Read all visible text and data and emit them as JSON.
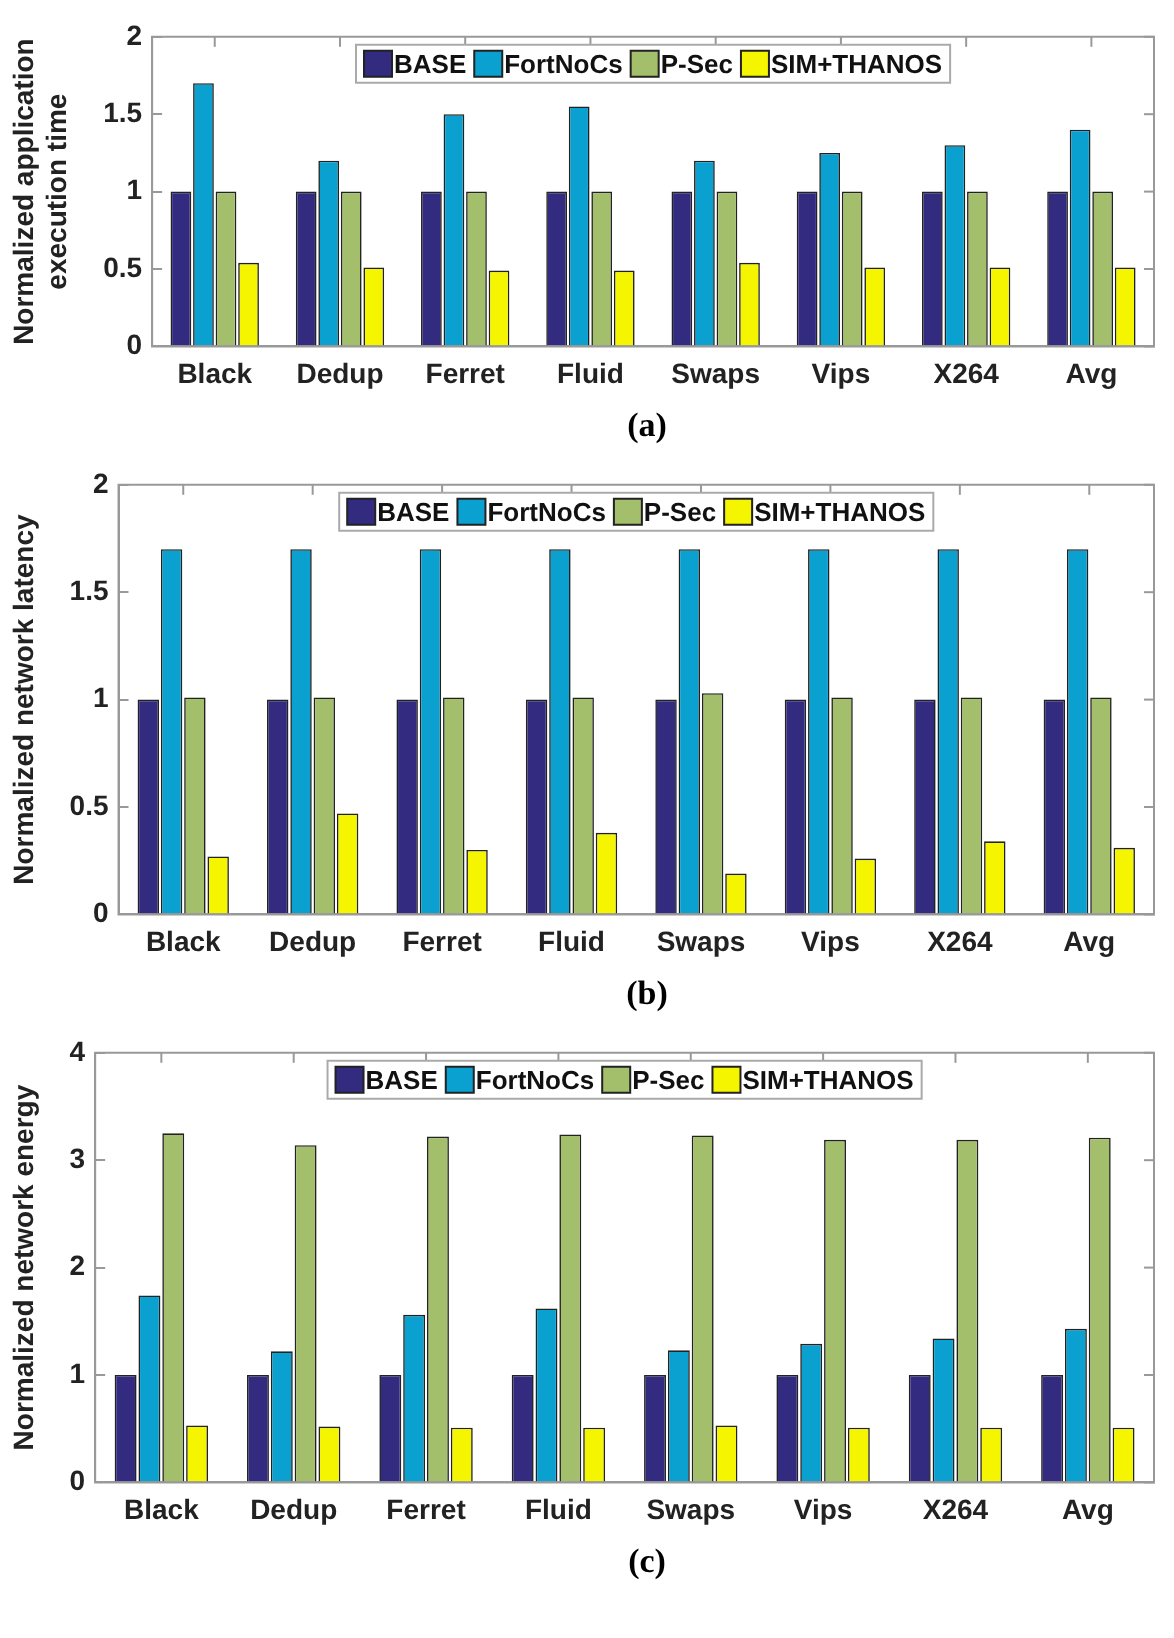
{
  "chart_data": [
    {
      "type": "bar",
      "ylabel": "Normalized application execution time",
      "categories": [
        "Black",
        "Dedup",
        "Ferret",
        "Fluid",
        "Swaps",
        "Vips",
        "X264",
        "Avg"
      ],
      "series": [
        {
          "name": "BASE",
          "color": "#322b80",
          "values": [
            1,
            1,
            1,
            1,
            1,
            1,
            1,
            1
          ]
        },
        {
          "name": "FortNoCs",
          "color": "#0aa0d0",
          "values": [
            1.7,
            1.2,
            1.5,
            1.55,
            1.2,
            1.25,
            1.3,
            1.4
          ]
        },
        {
          "name": "P-Sec",
          "color": "#a4bf6c",
          "values": [
            1,
            1,
            1,
            1,
            1,
            1,
            1,
            1
          ]
        },
        {
          "name": "SIM+THANOS",
          "color": "#f5f500",
          "values": [
            0.54,
            0.51,
            0.49,
            0.49,
            0.54,
            0.51,
            0.51,
            0.51
          ]
        }
      ],
      "ylim": [
        0,
        2
      ],
      "yticks": [
        0,
        0.5,
        1,
        1.5,
        2
      ],
      "grid": false,
      "legend": "top",
      "annotations": [
        "(a)"
      ]
    },
    {
      "type": "bar",
      "ylabel": "Normalized network latency",
      "categories": [
        "Black",
        "Dedup",
        "Ferret",
        "Fluid",
        "Swaps",
        "Vips",
        "X264",
        "Avg"
      ],
      "series": [
        {
          "name": "BASE",
          "color": "#322b80",
          "values": [
            1,
            1,
            1,
            1,
            1,
            1,
            1,
            1
          ]
        },
        {
          "name": "FortNoCs",
          "color": "#0aa0d0",
          "values": [
            1.7,
            1.7,
            1.7,
            1.7,
            1.7,
            1.7,
            1.7,
            1.7
          ]
        },
        {
          "name": "P-Sec",
          "color": "#a4bf6c",
          "values": [
            1.01,
            1.01,
            1.01,
            1.01,
            1.03,
            1.01,
            1.01,
            1.01
          ]
        },
        {
          "name": "SIM+THANOS",
          "color": "#f5f500",
          "values": [
            0.27,
            0.47,
            0.3,
            0.38,
            0.19,
            0.26,
            0.34,
            0.31
          ]
        }
      ],
      "ylim": [
        0,
        2
      ],
      "yticks": [
        0,
        0.5,
        1,
        1.5,
        2
      ],
      "grid": false,
      "legend": "top",
      "annotations": [
        "(b)"
      ]
    },
    {
      "type": "bar",
      "ylabel": "Normalized network energy",
      "categories": [
        "Black",
        "Dedup",
        "Ferret",
        "Fluid",
        "Swaps",
        "Vips",
        "X264",
        "Avg"
      ],
      "series": [
        {
          "name": "BASE",
          "color": "#322b80",
          "values": [
            1,
            1,
            1,
            1,
            1,
            1,
            1,
            1
          ]
        },
        {
          "name": "FortNoCs",
          "color": "#0aa0d0",
          "values": [
            1.74,
            1.22,
            1.56,
            1.62,
            1.23,
            1.29,
            1.34,
            1.43
          ]
        },
        {
          "name": "P-Sec",
          "color": "#a4bf6c",
          "values": [
            3.25,
            3.14,
            3.22,
            3.24,
            3.23,
            3.19,
            3.19,
            3.21
          ]
        },
        {
          "name": "SIM+THANOS",
          "color": "#f5f500",
          "values": [
            0.53,
            0.52,
            0.51,
            0.51,
            0.53,
            0.51,
            0.51,
            0.51
          ]
        }
      ],
      "ylim": [
        0,
        4
      ],
      "yticks": [
        0,
        1,
        2,
        3,
        4
      ],
      "grid": false,
      "legend": "top",
      "annotations": [
        "(c)"
      ]
    }
  ]
}
